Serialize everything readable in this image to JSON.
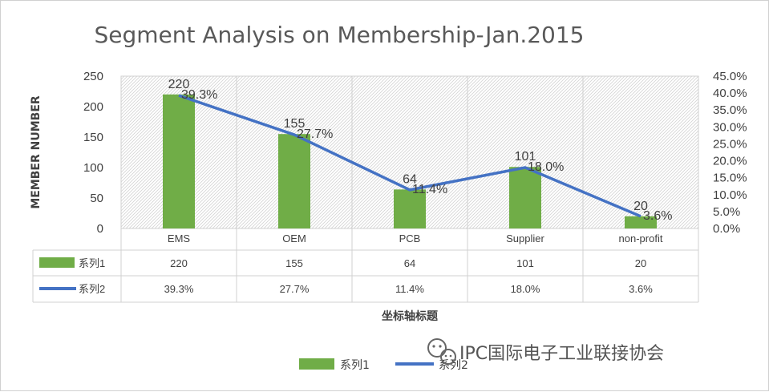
{
  "chart_data": {
    "type": "bar",
    "title": "Segment Analysis on Membership-Jan.2015",
    "categories": [
      "EMS",
      "OEM",
      "PCB",
      "Supplier",
      "non-profit"
    ],
    "series": [
      {
        "name": "系列1",
        "kind": "bar",
        "axis": "left",
        "color": "#70ad47",
        "values": [
          220,
          155,
          64,
          101,
          20
        ],
        "labels": [
          "220",
          "155",
          "64",
          "101",
          "20"
        ]
      },
      {
        "name": "系列2",
        "kind": "line",
        "axis": "right",
        "color": "#4472c4",
        "values": [
          39.3,
          27.7,
          11.4,
          18.0,
          3.6
        ],
        "labels": [
          "39.3%",
          "27.7%",
          "11.4%",
          "18.0%",
          "3.6%"
        ]
      }
    ],
    "ylabel": "MEMBER NUMBER",
    "xlabel": "坐标轴标题",
    "ylim": [
      0,
      250
    ],
    "y_ticks": [
      "0",
      "50",
      "100",
      "150",
      "200",
      "250"
    ],
    "y2lim": [
      0,
      45
    ],
    "y2_ticks": [
      "0.0%",
      "5.0%",
      "10.0%",
      "15.0%",
      "20.0%",
      "25.0%",
      "30.0%",
      "35.0%",
      "40.0%",
      "45.0%"
    ],
    "data_table": true,
    "legend_position": "bottom"
  },
  "watermark": {
    "text": "IPC国际电子工业联接协会"
  }
}
